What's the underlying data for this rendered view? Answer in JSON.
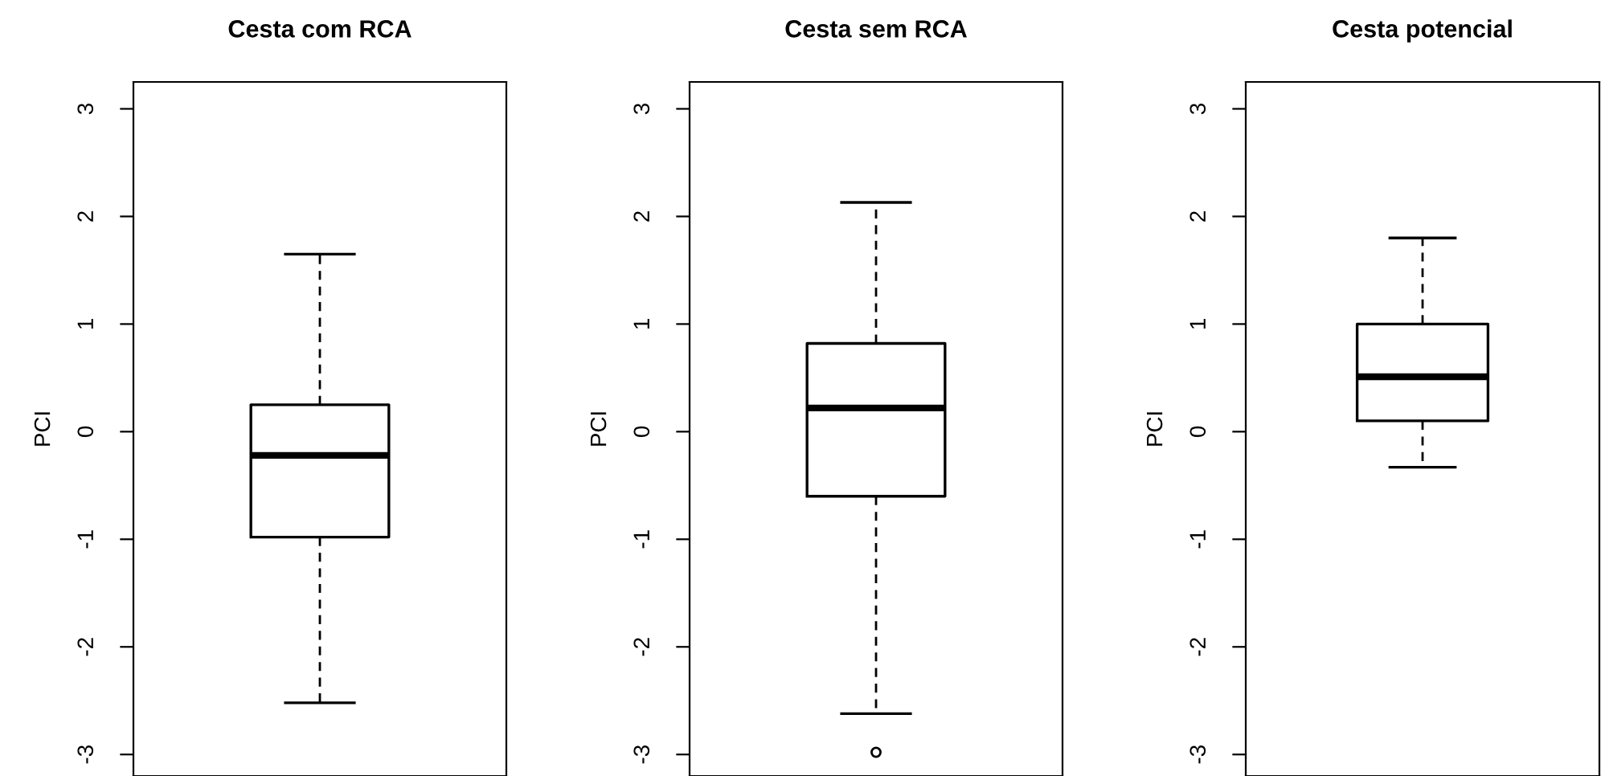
{
  "chart_data": [
    {
      "type": "box",
      "title": "Cesta com RCA",
      "ylabel": "PCI",
      "categories": [
        null
      ],
      "tick_labels": "y",
      "ylim": [
        -3.2,
        3.25
      ],
      "yticks": [
        -3,
        -2,
        -1,
        0,
        1,
        2,
        3
      ],
      "boxes": [
        {
          "low": -2.52,
          "q1": -0.98,
          "median": -0.22,
          "q3": 0.25,
          "high": 1.65
        }
      ]
    },
    {
      "type": "box",
      "title": "Cesta sem RCA",
      "ylabel": "PCI",
      "categories": [
        null
      ],
      "tick_labels": "y",
      "ylim": [
        -3.2,
        3.25
      ],
      "yticks": [
        -3,
        -2,
        -1,
        0,
        1,
        2,
        3
      ],
      "boxes": [
        {
          "low": -2.62,
          "q1": -0.6,
          "median": 0.22,
          "q3": 0.82,
          "high": 2.13,
          "outliers": [
            -2.98
          ]
        }
      ]
    },
    {
      "type": "box",
      "title": "Cesta potencial",
      "ylabel": "PCI",
      "categories": [
        null
      ],
      "tick_labels": "y",
      "ylim": [
        -3.2,
        3.25
      ],
      "yticks": [
        -3,
        -2,
        -1,
        0,
        1,
        2,
        3
      ],
      "boxes": [
        {
          "low": -0.33,
          "q1": 0.1,
          "median": 0.51,
          "q3": 1.0,
          "high": 1.8
        }
      ]
    }
  ]
}
